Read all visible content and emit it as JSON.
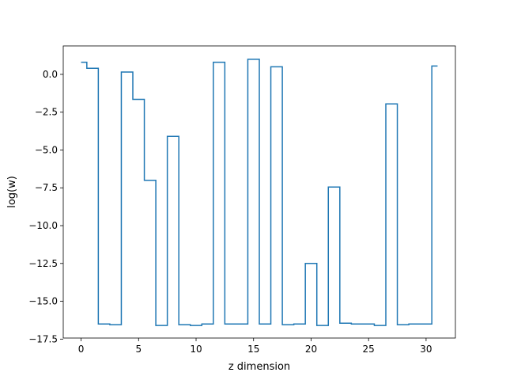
{
  "chart_data": {
    "type": "line",
    "drawstyle": "steps-mid",
    "xlabel": "z dimension",
    "ylabel": "log(w)",
    "xlim": [
      -1.55,
      32.55
    ],
    "ylim": [
      -17.43,
      1.88
    ],
    "xticks": [
      0,
      5,
      10,
      15,
      20,
      25,
      30
    ],
    "xtick_labels": [
      "0",
      "5",
      "10",
      "15",
      "20",
      "25",
      "30"
    ],
    "yticks": [
      -17.5,
      -15.0,
      -12.5,
      -10.0,
      -7.5,
      -5.0,
      -2.5,
      0.0
    ],
    "ytick_labels": [
      "−17.5",
      "−15.0",
      "−12.5",
      "−10.0",
      "−7.5",
      "−5.0",
      "−2.5",
      "0.0"
    ],
    "grid": false,
    "series": [
      {
        "color": "#1f77b4",
        "x": [
          0,
          1,
          2,
          3,
          4,
          5,
          6,
          7,
          8,
          9,
          10,
          11,
          12,
          13,
          14,
          15,
          16,
          17,
          18,
          19,
          20,
          21,
          22,
          23,
          24,
          25,
          26,
          27,
          28,
          29,
          30,
          31
        ],
        "y": [
          0.8,
          0.4,
          -16.5,
          -16.55,
          0.15,
          -1.65,
          -7.0,
          -16.6,
          -4.1,
          -16.55,
          -16.6,
          -16.5,
          0.8,
          -16.5,
          -16.5,
          1.0,
          -16.5,
          0.5,
          -16.55,
          -16.5,
          -12.5,
          -16.6,
          -7.45,
          -16.45,
          -16.5,
          -16.5,
          -16.6,
          -1.95,
          -16.55,
          -16.5,
          -16.5,
          0.55
        ]
      }
    ]
  }
}
